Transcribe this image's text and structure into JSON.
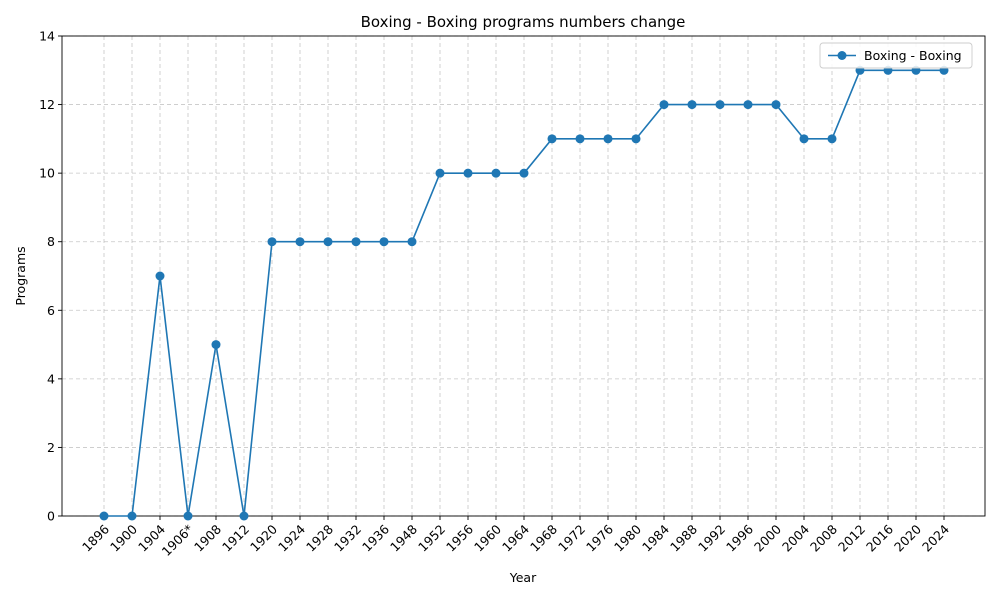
{
  "chart_data": {
    "type": "line",
    "title": "Boxing - Boxing programs numbers change",
    "xlabel": "Year",
    "ylabel": "Programs",
    "categories": [
      "1896",
      "1900",
      "1904",
      "1906*",
      "1908",
      "1912",
      "1920",
      "1924",
      "1928",
      "1932",
      "1936",
      "1948",
      "1952",
      "1956",
      "1960",
      "1964",
      "1968",
      "1972",
      "1976",
      "1980",
      "1984",
      "1988",
      "1992",
      "1996",
      "2000",
      "2004",
      "2008",
      "2012",
      "2016",
      "2020",
      "2024"
    ],
    "series": [
      {
        "name": "Boxing - Boxing",
        "color": "#1f77b4",
        "marker": "circle",
        "values": [
          0,
          0,
          7,
          0,
          5,
          0,
          8,
          8,
          8,
          8,
          8,
          8,
          10,
          10,
          10,
          10,
          11,
          11,
          11,
          11,
          12,
          12,
          12,
          12,
          12,
          11,
          11,
          13,
          13,
          13,
          13
        ]
      }
    ],
    "ylim": [
      0,
      14
    ],
    "yticks": [
      0,
      2,
      4,
      6,
      8,
      10,
      12,
      14
    ],
    "grid": true,
    "legend_position": "top-right"
  }
}
